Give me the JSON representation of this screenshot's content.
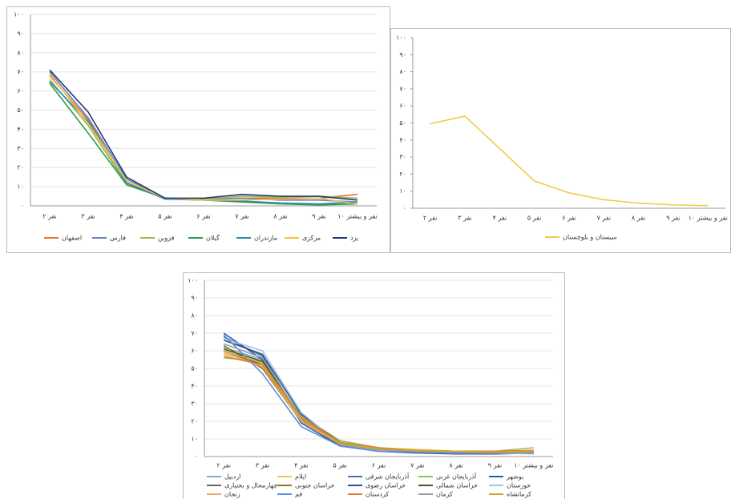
{
  "chart_data": [
    {
      "type": "line",
      "categories": [
        "۲ نفر",
        "۳ نفر",
        "۴ نفر",
        "۵ نفر",
        "۶ نفر",
        "۷ نفر",
        "۸ نفر",
        "۹ نفر",
        "۱۰ نفر و بیشتر"
      ],
      "ylim": [
        0,
        100
      ],
      "yticks": [
        {
          "value": 0,
          "label": "۰"
        },
        {
          "value": 10,
          "label": "۱۰"
        },
        {
          "value": 20,
          "label": "۲۰"
        },
        {
          "value": 30,
          "label": "۳۰"
        },
        {
          "value": 40,
          "label": "۴۰"
        },
        {
          "value": 50,
          "label": "۵۰"
        },
        {
          "value": 60,
          "label": "۶۰"
        },
        {
          "value": 70,
          "label": "۷۰"
        },
        {
          "value": 80,
          "label": "۸۰"
        },
        {
          "value": 90,
          "label": "۹۰"
        },
        {
          "value": 100,
          "label": "۱۰۰"
        }
      ],
      "grid": true,
      "series": [
        {
          "name": "اصفهان",
          "color": "#e8762b",
          "values": [
            68,
            45,
            12,
            4,
            3.5,
            4,
            4,
            4,
            6
          ]
        },
        {
          "name": "فارس",
          "color": "#6a7fc0",
          "values": [
            70,
            46,
            14,
            4,
            3.5,
            4,
            3,
            3,
            2
          ]
        },
        {
          "name": "قزوین",
          "color": "#9bbb59",
          "values": [
            66,
            42,
            11,
            4,
            3.5,
            5,
            4.5,
            5,
            4
          ]
        },
        {
          "name": "گیلان",
          "color": "#2e9a4a",
          "values": [
            64,
            38,
            11,
            4,
            3,
            2,
            1,
            0.5,
            1
          ]
        },
        {
          "name": "مازندران",
          "color": "#2a8cb0",
          "values": [
            65,
            44,
            12,
            3.5,
            3,
            2.5,
            1.5,
            1,
            2
          ]
        },
        {
          "name": "مرکزی",
          "color": "#f5c242",
          "values": [
            69,
            43,
            13,
            4,
            3,
            3,
            3.5,
            4,
            1
          ]
        },
        {
          "name": "یزد",
          "color": "#1f3a78",
          "values": [
            71,
            49,
            15,
            4,
            4,
            6,
            5,
            5,
            3
          ]
        }
      ]
    },
    {
      "type": "line",
      "categories": [
        "۲ نفر",
        "۳ نفر",
        "۴ نفر",
        "۵ نفر",
        "۶ نفر",
        "۷ نفر",
        "۸ نفر",
        "۹ نفر",
        "۱۰ نفر و بیشتر"
      ],
      "ylim": [
        0,
        100
      ],
      "yticks": [
        {
          "value": 0,
          "label": "۰"
        },
        {
          "value": 10,
          "label": "۱۰"
        },
        {
          "value": 20,
          "label": "۲۰"
        },
        {
          "value": 30,
          "label": "۳۰"
        },
        {
          "value": 40,
          "label": "۴۰"
        },
        {
          "value": 50,
          "label": "۵۰"
        },
        {
          "value": 60,
          "label": "۶۰"
        },
        {
          "value": 70,
          "label": "۷۰"
        },
        {
          "value": 80,
          "label": "۸۰"
        },
        {
          "value": 90,
          "label": "۹۰"
        },
        {
          "value": 100,
          "label": "۱۰۰"
        }
      ],
      "grid": false,
      "series": [
        {
          "name": "سیستان و بلوچستان",
          "color": "#f2c94c",
          "values": [
            49.5,
            54,
            35,
            16,
            9,
            5,
            3,
            2,
            1.5
          ]
        }
      ]
    },
    {
      "type": "line",
      "categories": [
        "۲ نفر",
        "۳ نفر",
        "۴ نفر",
        "۵ نفر",
        "۶ نفر",
        "۷ نفر",
        "۸ نفر",
        "۹ نفر",
        "۱۰ نفر و بیشتر"
      ],
      "ylim": [
        0,
        100
      ],
      "yticks": [
        {
          "value": 0,
          "label": "۰"
        },
        {
          "value": 10,
          "label": "۱۰"
        },
        {
          "value": 20,
          "label": "۲۰"
        },
        {
          "value": 30,
          "label": "۳۰"
        },
        {
          "value": 40,
          "label": "۴۰"
        },
        {
          "value": 50,
          "label": "۵۰"
        },
        {
          "value": 60,
          "label": "۶۰"
        },
        {
          "value": 70,
          "label": "۷۰"
        },
        {
          "value": 80,
          "label": "۸۰"
        },
        {
          "value": 90,
          "label": "۹۰"
        },
        {
          "value": 100,
          "label": "۱۰۰"
        }
      ],
      "grid": true,
      "series": [
        {
          "name": "اردبیل",
          "color": "#7fa7d9",
          "values": [
            62,
            55,
            22,
            7,
            4,
            3,
            2.5,
            2,
            2
          ]
        },
        {
          "name": "ایلام",
          "color": "#f2c94c",
          "values": [
            58,
            53,
            20,
            8,
            5,
            4,
            3,
            2.5,
            3
          ]
        },
        {
          "name": "آذربایجان شرقی",
          "color": "#4a6fb5",
          "values": [
            68,
            57,
            21,
            6,
            3.5,
            2.5,
            2,
            2,
            2
          ]
        },
        {
          "name": "آذربایجان غربی",
          "color": "#8cbf5a",
          "values": [
            56,
            54,
            23,
            9,
            5,
            3.5,
            3,
            3,
            5
          ]
        },
        {
          "name": "بوشهر",
          "color": "#2b5aa8",
          "values": [
            70,
            55,
            19,
            6,
            3,
            2,
            1.5,
            1.5,
            2
          ]
        },
        {
          "name": "چهارمحال و بختیاری",
          "color": "#666666",
          "values": [
            60,
            52,
            21,
            7,
            4,
            3,
            2.5,
            2,
            2.5
          ]
        },
        {
          "name": "خراسان جنوبی",
          "color": "#8a7a1f",
          "values": [
            63,
            50,
            20,
            7,
            4.5,
            3.5,
            3,
            3,
            3
          ]
        },
        {
          "name": "خراسان رضوی",
          "color": "#2f4f8f",
          "values": [
            66,
            58,
            24,
            8,
            4,
            3,
            2.5,
            2,
            3
          ]
        },
        {
          "name": "خراسان شمالی",
          "color": "#3d5a2a",
          "values": [
            61,
            54,
            22,
            7.5,
            4,
            3,
            2.5,
            2.5,
            3
          ]
        },
        {
          "name": "خوزستان",
          "color": "#9cc3e6",
          "values": [
            67,
            60,
            25,
            7,
            3.5,
            2.5,
            2,
            2,
            1.5
          ]
        },
        {
          "name": "زنجان",
          "color": "#f4a460",
          "values": [
            59,
            51,
            20,
            7,
            4,
            3,
            2.5,
            2.5,
            3
          ]
        },
        {
          "name": "قم",
          "color": "#5b8fd6",
          "values": [
            69,
            47,
            17,
            6,
            3,
            2.5,
            2,
            2,
            2
          ]
        },
        {
          "name": "کردستان",
          "color": "#e07b39",
          "values": [
            57,
            52,
            23,
            8,
            5,
            3.5,
            3,
            3,
            3.5
          ]
        },
        {
          "name": "کرمان",
          "color": "#9a9a9a",
          "values": [
            64,
            56,
            22,
            7,
            4,
            3,
            2.5,
            2,
            2.5
          ]
        },
        {
          "name": "کرمانشاه",
          "color": "#d9a520",
          "values": [
            60,
            53,
            21,
            7.5,
            4.5,
            3.5,
            3,
            2.5,
            3
          ]
        }
      ]
    }
  ]
}
